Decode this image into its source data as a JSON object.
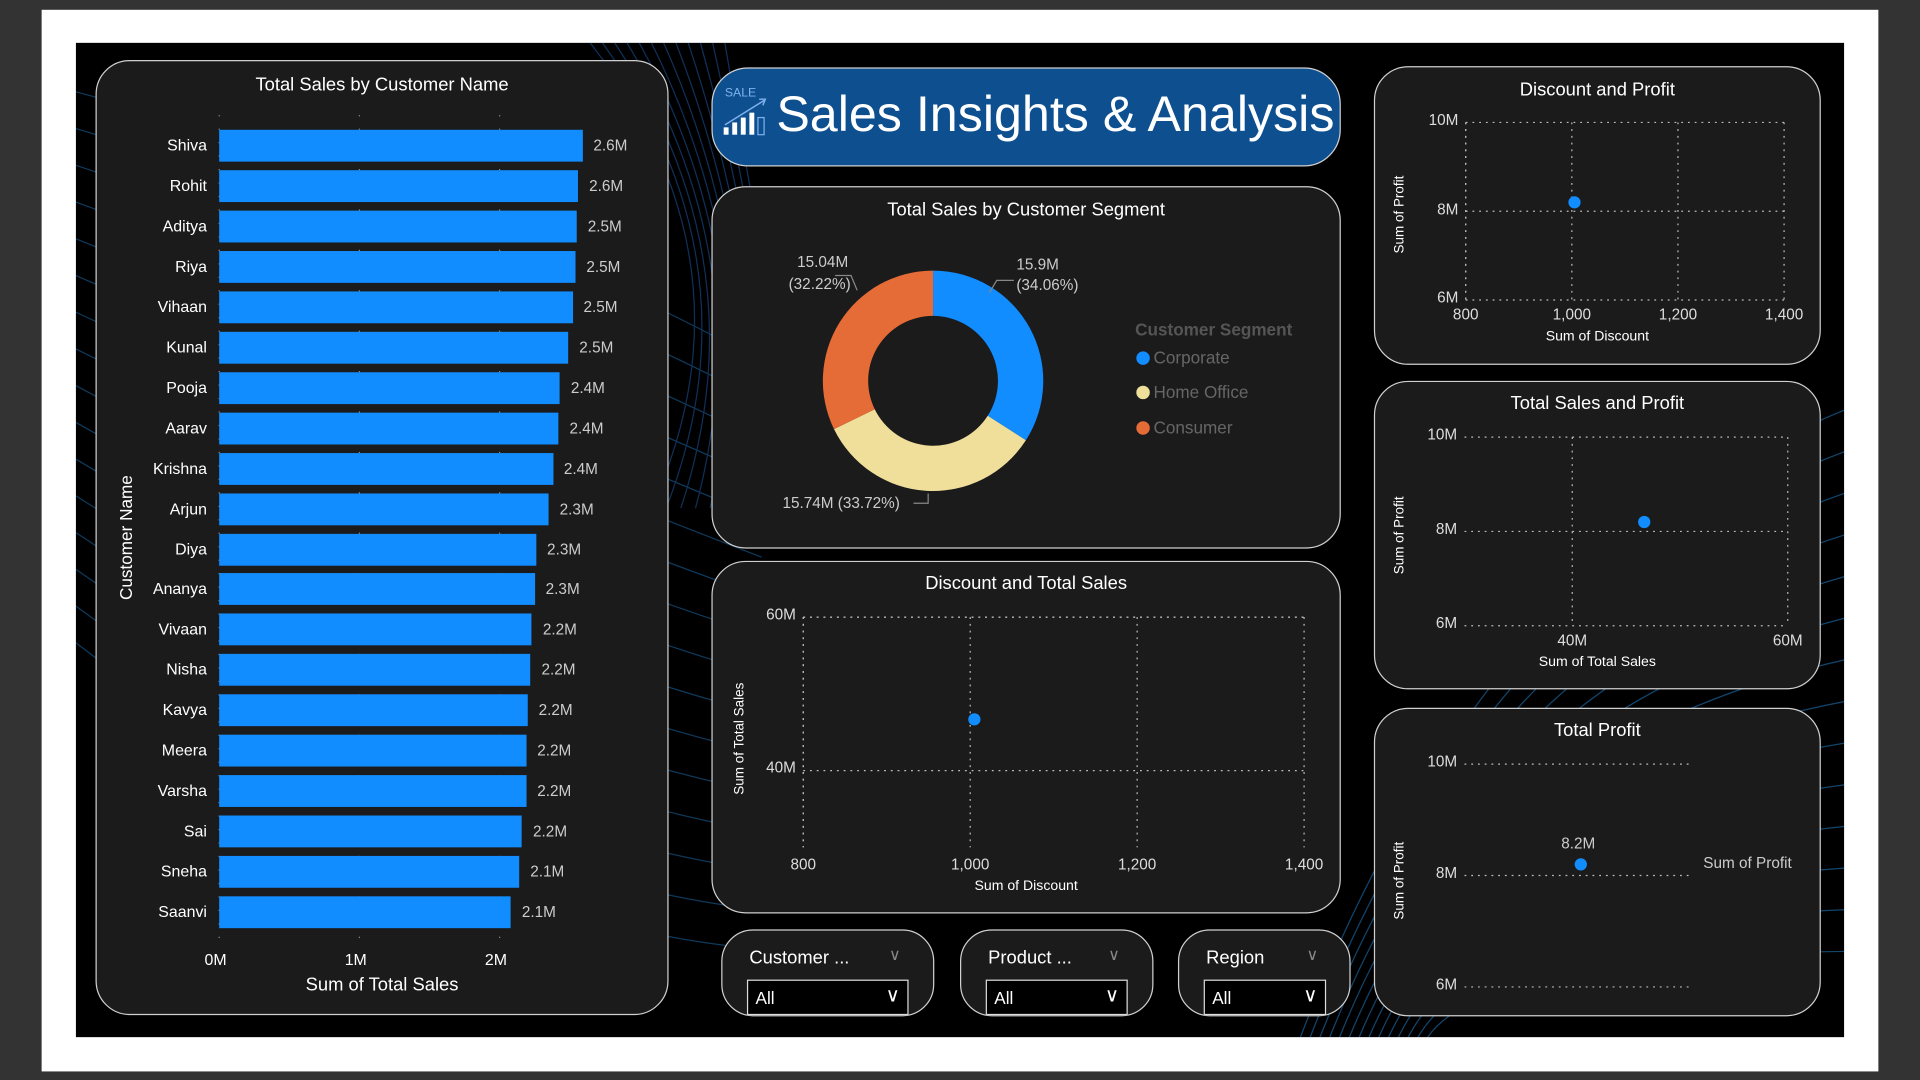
{
  "header": {
    "title": "Sales Insights & Analysis",
    "logo_text": "SALE",
    "logo_icon": "bar-chart-rising-icon"
  },
  "colors": {
    "accent": "#118dff",
    "banner": "#0d4f8f",
    "corporate": "#118dff",
    "home_office": "#efdf9b",
    "consumer": "#e66c37",
    "panel_bg": "#1b1b1b"
  },
  "bar_chart": {
    "title": "Total Sales by Customer Name",
    "xlabel": "Sum of Total Sales",
    "ylabel": "Customer Name",
    "type": "bar",
    "orientation": "horizontal",
    "xlim": [
      0,
      2.6
    ],
    "xticks": [
      "0M",
      "1M",
      "2M"
    ],
    "grid": true,
    "categories": [
      "Shiva",
      "Rohit",
      "Aditya",
      "Riya",
      "Vihaan",
      "Kunal",
      "Pooja",
      "Aarav",
      "Krishna",
      "Arjun",
      "Diya",
      "Ananya",
      "Vivaan",
      "Nisha",
      "Kavya",
      "Meera",
      "Varsha",
      "Sai",
      "Sneha",
      "Saanvi"
    ],
    "values": [
      2.59,
      2.56,
      2.55,
      2.54,
      2.52,
      2.49,
      2.43,
      2.42,
      2.38,
      2.35,
      2.26,
      2.25,
      2.23,
      2.22,
      2.2,
      2.19,
      2.19,
      2.16,
      2.14,
      2.08
    ],
    "labels": [
      "2.6M",
      "2.6M",
      "2.5M",
      "2.5M",
      "2.5M",
      "2.5M",
      "2.4M",
      "2.4M",
      "2.4M",
      "2.3M",
      "2.3M",
      "2.3M",
      "2.2M",
      "2.2M",
      "2.2M",
      "2.2M",
      "2.2M",
      "2.2M",
      "2.1M",
      "2.1M"
    ]
  },
  "chart_data": [
    {
      "type": "pie",
      "title": "Total Sales by Customer Segment",
      "legend_title": "Customer Segment",
      "legend_placement": "right",
      "categories": [
        "Corporate",
        "Home Office",
        "Consumer"
      ],
      "values": [
        15.9,
        15.74,
        15.04
      ],
      "percents": [
        34.06,
        33.72,
        32.22
      ],
      "labels": [
        "15.9M",
        "15.74M (33.72%)",
        "15.04M"
      ],
      "sublabels": [
        "(34.06%)",
        "",
        "(32.22%)"
      ]
    },
    {
      "type": "scatter",
      "title": "Discount and Total Sales",
      "xlabel": "Sum of Discount",
      "ylabel": "Sum of Total Sales",
      "xlim": [
        800,
        1400
      ],
      "ylim": [
        30,
        60
      ],
      "xticks": [
        "800",
        "1,000",
        "1,200",
        "1,400"
      ],
      "yticks": [
        "40M",
        "60M"
      ],
      "x": [
        1005
      ],
      "y": [
        46.68
      ],
      "grid": true
    },
    {
      "type": "scatter",
      "title": "Discount and Profit",
      "xlabel": "Sum of Discount",
      "ylabel": "Sum of Profit",
      "xlim": [
        800,
        1400
      ],
      "ylim": [
        6,
        10
      ],
      "xticks": [
        "800",
        "1,000",
        "1,200",
        "1,400"
      ],
      "yticks": [
        "6M",
        "8M",
        "10M"
      ],
      "x": [
        1005
      ],
      "y": [
        8.2
      ],
      "grid": true
    },
    {
      "type": "scatter",
      "title": "Total Sales and Profit",
      "xlabel": "Sum of Total Sales",
      "ylabel": "Sum of Profit",
      "xlim": [
        30,
        60
      ],
      "ylim": [
        6,
        10
      ],
      "xticks": [
        "40M",
        "60M"
      ],
      "yticks": [
        "6M",
        "8M",
        "10M"
      ],
      "x": [
        46.68
      ],
      "y": [
        8.2
      ],
      "grid": true
    },
    {
      "type": "scatter",
      "title": "Total Profit",
      "ylabel": "Sum of Profit",
      "series_label": "Sum of Profit",
      "ylim": [
        6,
        10
      ],
      "yticks": [
        "6M",
        "8M",
        "10M"
      ],
      "y": [
        8.2
      ],
      "data_label": "8.2M",
      "grid": true
    }
  ],
  "slicers": [
    {
      "label": "Customer ...",
      "value": "All"
    },
    {
      "label": "Product ...",
      "value": "All"
    },
    {
      "label": "Region",
      "value": "All"
    }
  ]
}
